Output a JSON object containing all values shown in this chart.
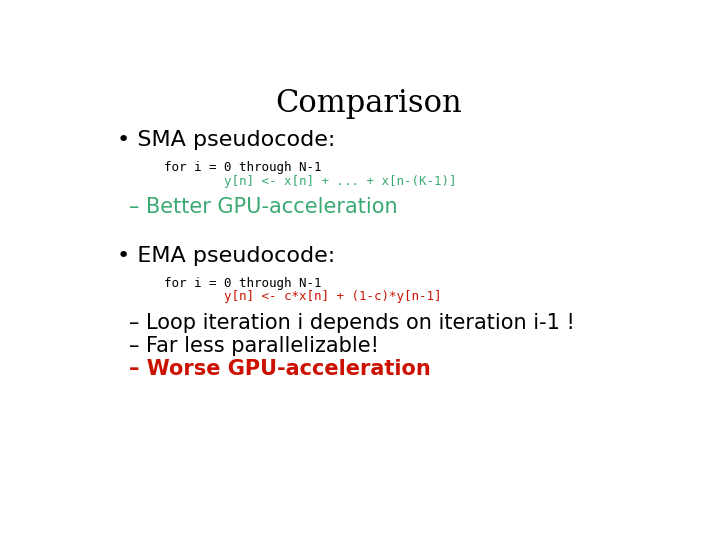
{
  "title": "Comparison",
  "title_fontsize": 22,
  "title_font": "DejaVu Serif",
  "background_color": "#ffffff",
  "bullet_fontsize": 16,
  "sub_fontsize": 15,
  "code_fontsize": 9,
  "green_color": "#3aaa72",
  "red_color": "#cc1100",
  "black_color": "#000000",
  "sma_bullet": "• SMA pseudocode:",
  "sma_code_line1": "for i = 0 through N-1",
  "sma_code_line2": "        y[n] <- x[n] + ... + x[n-(K-1)]",
  "sma_point": "– Better GPU-acceleration",
  "ema_bullet": "• EMA pseudocode:",
  "ema_code_line1": "for i = 0 through N-1",
  "ema_code_line2": "        y[n] <- c*x[n] + (1-c)*y[n-1]",
  "ema_point1": "– Loop iteration i depends on iteration i-1 !",
  "ema_point2": "– Far less parallelizable!",
  "ema_point3": "– Worse GPU-acceleration"
}
